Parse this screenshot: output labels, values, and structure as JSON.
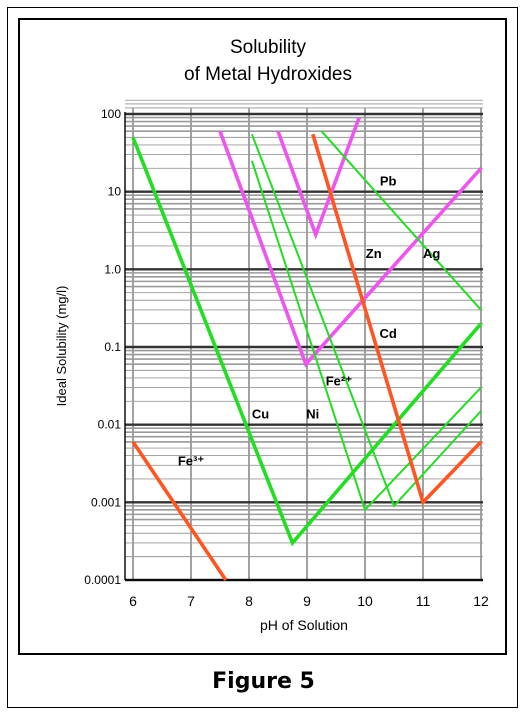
{
  "caption": "Figure 5",
  "chart_data": {
    "type": "line",
    "title_lines": [
      "Solubility",
      "of Metal Hydroxides"
    ],
    "xlabel": "pH of Solution",
    "ylabel": "Ideal Solubility (mg/l)",
    "x_ticks": [
      "6",
      "7",
      "8",
      "9",
      "10",
      "11",
      "12"
    ],
    "y_ticks": [
      "0.0001",
      "0.001",
      "0.01",
      "0.1",
      "1.0",
      "10",
      "100"
    ],
    "xlim": [
      6,
      12
    ],
    "ylim": [
      0.0001,
      100
    ],
    "y_scale": "log",
    "grid": true,
    "colors": {
      "green": "#22dd22",
      "magenta": "#ee55ee",
      "orange": "#ff5522"
    },
    "series": [
      {
        "name": "Fe3+",
        "label": "Fe³⁺",
        "color": "orange",
        "x": [
          6.0,
          7.6
        ],
        "y": [
          0.006,
          0.0001
        ]
      },
      {
        "name": "Cu",
        "label": "Cu",
        "color": "green",
        "x": [
          6.0,
          8.75,
          12.0
        ],
        "y": [
          50,
          0.0003,
          0.2
        ]
      },
      {
        "name": "Pb",
        "label": "Pb",
        "color": "magenta",
        "x": [
          8.5,
          9.15,
          9.9
        ],
        "y": [
          60,
          2.8,
          90
        ]
      },
      {
        "name": "Zn",
        "label": "Zn",
        "color": "magenta",
        "x": [
          7.5,
          8.98,
          12.0
        ],
        "y": [
          60,
          0.06,
          20
        ]
      },
      {
        "name": "Ni",
        "label": "Ni",
        "color": "green",
        "x": [
          8.05,
          10.0,
          12.0
        ],
        "y": [
          25,
          0.0008,
          0.03
        ]
      },
      {
        "name": "Fe2+",
        "label": "Fe²⁺",
        "color": "green",
        "x": [
          8.05,
          10.5,
          12.0
        ],
        "y": [
          55,
          0.0009,
          0.015
        ]
      },
      {
        "name": "Cd",
        "label": "Cd",
        "color": "orange",
        "x": [
          9.1,
          11.0,
          12.0
        ],
        "y": [
          55,
          0.001,
          0.006
        ]
      },
      {
        "name": "Ag",
        "label": "Ag",
        "color": "green",
        "x": [
          9.25,
          12.0
        ],
        "y": [
          60,
          0.3
        ]
      }
    ]
  }
}
